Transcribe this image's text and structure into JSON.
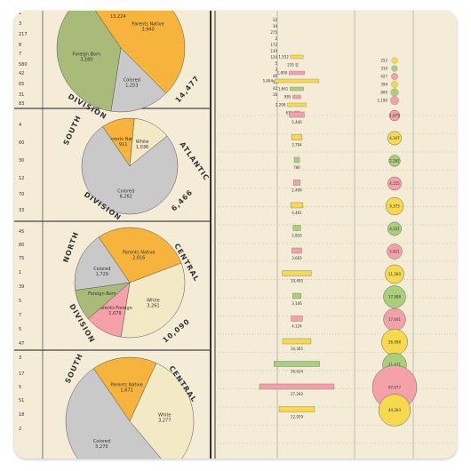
{
  "chart_data": [
    {
      "type": "pie",
      "region_words": [
        "DIVISION"
      ],
      "region_total": "14,477",
      "slices": [
        {
          "label": "Parents Native",
          "value_text": "3,940",
          "value": 3940,
          "color": "#f6b43c"
        },
        {
          "label": "Colored",
          "value_text": "1,253",
          "value": 1253,
          "color": "#c9c9c9"
        },
        {
          "label": "Foreign Born",
          "value_text": "3,180",
          "value": 3180,
          "color": "#a9bb79"
        }
      ],
      "top_value": "13,224"
    },
    {
      "type": "pie",
      "region_words": [
        "SOUTH",
        "ATLANTIC",
        "DIVISION"
      ],
      "region_total": "6,466",
      "slices": [
        {
          "label": "Parents Native",
          "value_text": "911",
          "value": 911,
          "color": "#f6b43c"
        },
        {
          "label": "White",
          "value_text": "1,036",
          "value": 1036,
          "color": "#f3e9c4"
        },
        {
          "label": "Colored",
          "value_text": "6,262",
          "value": 6262,
          "color": "#c9c9c9"
        }
      ]
    },
    {
      "type": "pie",
      "region_words": [
        "NORTH",
        "CENTRAL",
        "DIVISION"
      ],
      "region_total": "10,090",
      "slices": [
        {
          "label": "Parents Native",
          "value_text": "2,816",
          "value": 2816,
          "color": "#f6b43c"
        },
        {
          "label": "White",
          "value_text": "3,261",
          "value": 3261,
          "color": "#f3e9c4"
        },
        {
          "label": "Parents Foreign",
          "value_text": "1,079",
          "value": 1079,
          "color": "#f4a1a9"
        },
        {
          "label": "Foreign Born",
          "value_text": "",
          "value": 900,
          "color": "#a9bb79"
        },
        {
          "label": "Colored",
          "value_text": "1,729",
          "value": 1729,
          "color": "#c9c9c9"
        }
      ]
    },
    {
      "type": "pie",
      "region_words": [
        "SOUTH",
        "CENTRAL"
      ],
      "slices": [
        {
          "label": "Parents Native",
          "value_text": "1,671",
          "value": 1671,
          "color": "#f6b43c"
        },
        {
          "label": "White",
          "value_text": "3,277",
          "value": 3277,
          "color": "#f3e9c4"
        },
        {
          "label": "Colored",
          "value_text": "5,270",
          "value": 5270,
          "color": "#c9c9c9"
        }
      ]
    },
    {
      "type": "bar",
      "bars": [
        {
          "label": "5,446",
          "value": 5446,
          "color": "#f4a1a9"
        },
        {
          "label": "3,794",
          "value": 3794,
          "color": "#f6d94c"
        },
        {
          "label": "786",
          "value": 786,
          "color": "#a9cf7a"
        },
        {
          "label": "2,499",
          "value": 2499,
          "color": "#f4a1a9"
        },
        {
          "label": "4,461",
          "value": 4461,
          "color": "#f6d94c"
        },
        {
          "label": "2,816",
          "value": 2816,
          "color": "#a9cf7a"
        },
        {
          "label": "3,603",
          "value": 3603,
          "color": "#f4a1a9"
        },
        {
          "label": "10,495",
          "value": 10495,
          "color": "#f6d94c"
        },
        {
          "label": "3,106",
          "value": 3106,
          "color": "#a9cf7a"
        },
        {
          "label": "4,124",
          "value": 4124,
          "color": "#f4a1a9"
        },
        {
          "label": "10,365",
          "value": 10365,
          "color": "#f6d94c"
        },
        {
          "label": "16,624",
          "value": 16624,
          "color": "#a9cf7a"
        },
        {
          "label": "27,260",
          "value": 27260,
          "color": "#f4a1a9"
        },
        {
          "label": "12,929",
          "value": 12929,
          "color": "#f6d94c"
        }
      ]
    },
    {
      "type": "scatter",
      "circles": [
        {
          "label": "1,675",
          "value": 1675,
          "color": "#f4a1a9"
        },
        {
          "label": "4,347",
          "value": 4347,
          "color": "#f6d94c"
        },
        {
          "label": "2,262",
          "value": 2262,
          "color": "#a9cf7a"
        },
        {
          "label": "4,155",
          "value": 4155,
          "color": "#f4a1a9"
        },
        {
          "label": "9,373",
          "value": 9373,
          "color": "#f6d94c"
        },
        {
          "label": "4,331",
          "value": 4331,
          "color": "#a9cf7a"
        },
        {
          "label": "5,821",
          "value": 5821,
          "color": "#f4a1a9"
        },
        {
          "label": "11,360",
          "value": 11360,
          "color": "#f6d94c"
        },
        {
          "label": "17,888",
          "value": 17888,
          "color": "#a9cf7a"
        },
        {
          "label": "17,641",
          "value": 17641,
          "color": "#f4a1a9"
        },
        {
          "label": "26,998",
          "value": 26998,
          "color": "#f6d94c"
        },
        {
          "label": "21,471",
          "value": 21471,
          "color": "#a9cf7a"
        },
        {
          "label": "97,077",
          "value": 97077,
          "color": "#f4a1a9"
        },
        {
          "label": "44,303",
          "value": 44303,
          "color": "#f6d94c"
        }
      ]
    }
  ],
  "left_row_numbers": [
    "1",
    "3",
    "217",
    "8",
    "7",
    "580",
    "42",
    "65",
    "31",
    "83",
    "4",
    "60",
    "30",
    "12",
    "70",
    "33",
    "45",
    "80",
    "75",
    "1",
    "39",
    "5",
    "7",
    "5",
    "47",
    "3",
    "17",
    "5",
    "51",
    "18",
    "2"
  ],
  "right_row_numbers": [
    "32",
    "34",
    "275",
    "2",
    "172",
    "130",
    "120",
    "5",
    "3",
    "46",
    "58",
    "42",
    "16"
  ],
  "small_bars": [
    {
      "label": "1,552",
      "value": 1552,
      "color": "#f6d94c"
    },
    {
      "label": "235",
      "value": 235,
      "color": "#a9cf7a"
    },
    {
      "label": "1,900",
      "value": 1900,
      "color": "#f4a1a9"
    },
    {
      "label": "5,404",
      "value": 5404,
      "color": "#f6d94c"
    },
    {
      "label": "1,661",
      "value": 1661,
      "color": "#a9cf7a"
    },
    {
      "label": "985",
      "value": 985,
      "color": "#f4a1a9"
    },
    {
      "label": "2,298",
      "value": 2298,
      "color": "#f6d94c"
    },
    {
      "label": "632",
      "value": 632,
      "color": "#a9cf7a"
    }
  ],
  "small_circles": [
    {
      "label": "252",
      "value": 252,
      "color": "#f6d94c"
    },
    {
      "label": "310",
      "value": 310,
      "color": "#a9cf7a"
    },
    {
      "label": "427",
      "value": 427,
      "color": "#f4a1a9"
    },
    {
      "label": "394",
      "value": 394,
      "color": "#f6d94c"
    },
    {
      "label": "800",
      "value": 800,
      "color": "#a9cf7a"
    },
    {
      "label": "1,190",
      "value": 1190,
      "color": "#f4a1a9"
    }
  ]
}
